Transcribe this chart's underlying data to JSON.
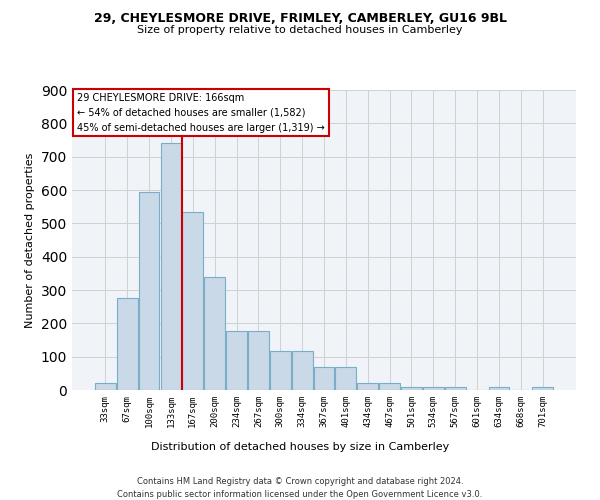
{
  "title1": "29, CHEYLESMORE DRIVE, FRIMLEY, CAMBERLEY, GU16 9BL",
  "title2": "Size of property relative to detached houses in Camberley",
  "xlabel": "Distribution of detached houses by size in Camberley",
  "ylabel": "Number of detached properties",
  "categories": [
    "33sqm",
    "67sqm",
    "100sqm",
    "133sqm",
    "167sqm",
    "200sqm",
    "234sqm",
    "267sqm",
    "300sqm",
    "334sqm",
    "367sqm",
    "401sqm",
    "434sqm",
    "467sqm",
    "501sqm",
    "534sqm",
    "567sqm",
    "601sqm",
    "634sqm",
    "668sqm",
    "701sqm"
  ],
  "values": [
    22,
    275,
    595,
    740,
    535,
    340,
    178,
    178,
    118,
    118,
    68,
    68,
    22,
    22,
    10,
    10,
    10,
    0,
    10,
    0,
    8
  ],
  "bar_color": "#c9d9e8",
  "bar_edge_color": "#7aaec8",
  "grid_color": "#d0d0d0",
  "annotation_box_text1": "29 CHEYLESMORE DRIVE: 166sqm",
  "annotation_box_text2": "← 54% of detached houses are smaller (1,582)",
  "annotation_box_text3": "45% of semi-detached houses are larger (1,319) →",
  "annotation_line_color": "#cc0000",
  "annotation_box_edge_color": "#cc0000",
  "footer1": "Contains HM Land Registry data © Crown copyright and database right 2024.",
  "footer2": "Contains public sector information licensed under the Open Government Licence v3.0.",
  "ylim": [
    0,
    900
  ],
  "red_line_index": 4.0
}
